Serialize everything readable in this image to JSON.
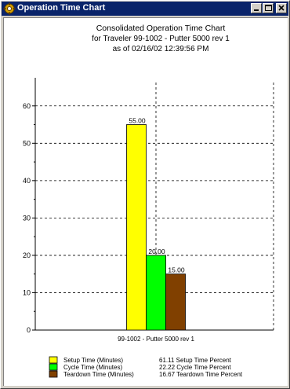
{
  "window": {
    "title": "Operation Time Chart",
    "icons": [
      "app-icon",
      "minimize-icon",
      "maximize-icon",
      "close-icon"
    ]
  },
  "chart_data": {
    "type": "bar",
    "title": "Consolidated Operation Time Chart",
    "subtitle_lines": [
      "for Traveler 99-1002 - Putter 5000 rev 1",
      "as of 02/16/02 12:39:56 PM"
    ],
    "categories": [
      "99-1002 - Putter 5000 rev 1"
    ],
    "series": [
      {
        "name": "Setup Time (Minutes)",
        "values": [
          55.0
        ],
        "label": "55.00",
        "color": "#ffff00"
      },
      {
        "name": "Cycle Time (Minutes)",
        "values": [
          20.0
        ],
        "label": "20.00",
        "color": "#00ff00"
      },
      {
        "name": "Teardown Time (Minutes)",
        "values": [
          15.0
        ],
        "label": "15.00",
        "color": "#804000"
      }
    ],
    "ylim": [
      0,
      65
    ],
    "yticks": [
      0,
      10,
      20,
      30,
      40,
      50,
      60
    ],
    "grid": true,
    "legend_position": "bottom-left",
    "percent_entries": [
      "61.11 Setup Time Percent",
      "22.22 Cycle Time Percent",
      "16.67 Teardown Time Percent"
    ],
    "xlabel": "",
    "ylabel": ""
  }
}
